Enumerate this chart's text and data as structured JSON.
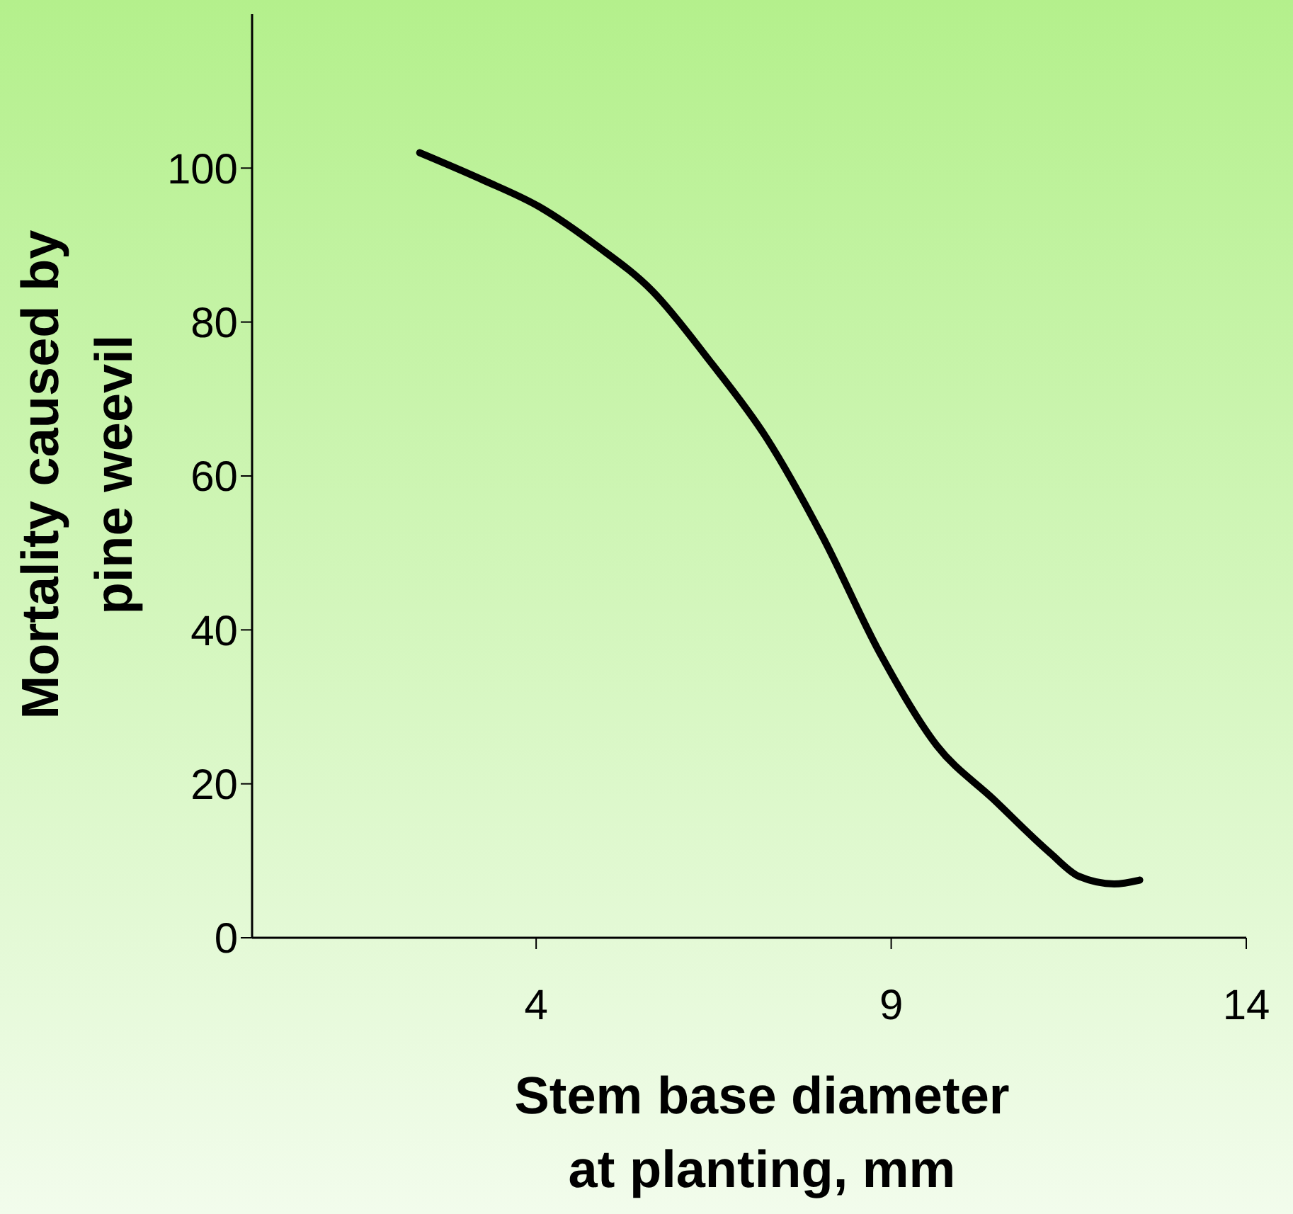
{
  "chart_data": {
    "type": "line",
    "xlabel": "Stem base diameter\nat planting, mm",
    "ylabel": "Mortality caused by\npine weevil",
    "series": [
      {
        "color": "#000000",
        "x": [
          2.36,
          3.24,
          4.04,
          4.84,
          5.64,
          6.44,
          7.24,
          8.04,
          8.84,
          9.64,
          10.44,
          11.24,
          11.64,
          12.14,
          12.5
        ],
        "values": [
          102,
          98.5,
          95,
          90,
          84,
          75,
          65,
          52,
          37,
          25,
          18,
          11,
          8,
          7,
          7.5
        ]
      }
    ],
    "xlim": [
      0,
      14
    ],
    "xticks": [
      4,
      9,
      14
    ],
    "ylim": [
      0,
      120
    ],
    "yticks": [
      0,
      20,
      40,
      60,
      80,
      100
    ],
    "marker": "none",
    "line_style": "solid"
  }
}
